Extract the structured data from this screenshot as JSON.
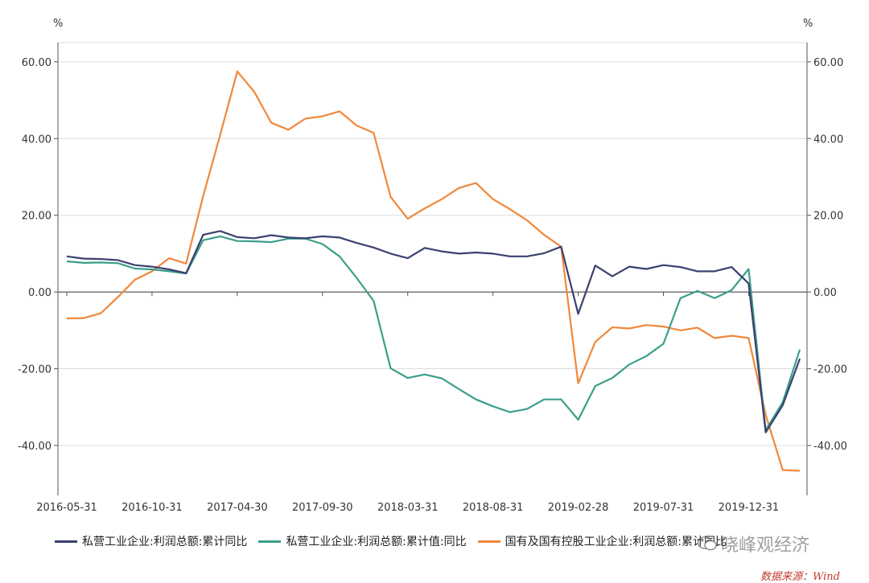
{
  "chart_data": {
    "type": "line",
    "left_unit": "%",
    "right_unit": "%",
    "ylim": [
      -53,
      65
    ],
    "yticks": [
      60,
      40,
      20,
      0,
      -20,
      -40
    ],
    "ytick_labels": [
      "60.00",
      "40.00",
      "20.00",
      "0.00",
      "-20.00",
      "-40.00"
    ],
    "x_tick_labels": [
      "2016-05-31",
      "2016-10-31",
      "2017-04-30",
      "2017-09-30",
      "2018-03-31",
      "2018-08-31",
      "2019-02-28",
      "2019-07-31",
      "2019-12-31"
    ],
    "x_tick_index": [
      0,
      5,
      10,
      15,
      20,
      25,
      30,
      35,
      40
    ],
    "x_count": 44,
    "series": [
      {
        "name": "私营工业企业:利润总额:累计同比",
        "color": "#3b4070",
        "values": [
          9.3,
          8.7,
          8.6,
          8.3,
          7.0,
          6.6,
          5.9,
          4.9,
          14.9,
          15.9,
          14.3,
          14.0,
          14.8,
          14.2,
          14.0,
          14.5,
          14.2,
          12.8,
          11.6,
          10.0,
          8.8,
          11.5,
          10.6,
          10.0,
          10.3,
          10.0,
          9.3,
          9.3,
          10.1,
          11.8,
          -5.7,
          6.9,
          4.1,
          6.6,
          6.0,
          7.0,
          6.5,
          5.4,
          5.4,
          6.5,
          2.2,
          -36.6,
          -29.5,
          -17.4
        ]
      },
      {
        "name": "私营工业企业:利润总额:累计值:同比",
        "color": "#3b9e8a",
        "values": [
          8.0,
          7.6,
          7.7,
          7.5,
          6.1,
          5.9,
          5.4,
          4.8,
          13.5,
          14.5,
          13.3,
          13.2,
          13.0,
          13.9,
          13.9,
          12.5,
          9.3,
          3.7,
          -2.3,
          -19.9,
          -22.4,
          -21.5,
          -22.5,
          -25.3,
          -28.0,
          -29.8,
          -31.3,
          -30.5,
          -28.0,
          -28.0,
          -33.3,
          -24.5,
          -22.4,
          -18.9,
          -16.7,
          -13.5,
          -1.6,
          0.3,
          -1.6,
          0.5,
          6.0,
          -36.0,
          -28.7,
          -15.0
        ]
      },
      {
        "name": "国有及国有控股工业企业:利润总额:累计同比",
        "color": "#f0883a",
        "values": [
          -6.9,
          -6.8,
          -5.5,
          -1.3,
          3.2,
          5.4,
          8.8,
          7.4,
          25.0,
          41.0,
          57.5,
          52.2,
          44.1,
          42.3,
          45.2,
          45.8,
          47.1,
          43.4,
          41.5,
          24.8,
          19.1,
          21.8,
          24.2,
          27.1,
          28.4,
          24.2,
          21.6,
          18.7,
          14.9,
          11.8,
          -23.8,
          -13.0,
          -9.2,
          -9.5,
          -8.6,
          -9.0,
          -10.0,
          -9.3,
          -12.0,
          -11.4,
          -12.0,
          -32.0,
          -46.4,
          -46.6
        ]
      }
    ]
  },
  "watermark": {
    "text": "晓峰观经济",
    "icon": "wechat-icon"
  },
  "source": "数据来源：Wind"
}
